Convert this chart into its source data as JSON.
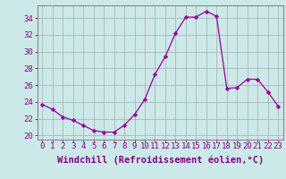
{
  "x": [
    0,
    1,
    2,
    3,
    4,
    5,
    6,
    7,
    8,
    9,
    10,
    11,
    12,
    13,
    14,
    15,
    16,
    17,
    18,
    19,
    20,
    21,
    22,
    23
  ],
  "y": [
    23.7,
    23.1,
    22.2,
    21.8,
    21.2,
    20.6,
    20.4,
    20.4,
    21.2,
    22.5,
    24.3,
    27.3,
    29.4,
    32.2,
    34.1,
    34.1,
    34.8,
    34.2,
    25.6,
    25.7,
    26.7,
    26.7,
    25.2,
    23.5
  ],
  "line_color": "#990099",
  "marker": "D",
  "marker_size": 2.2,
  "bg_color": "#cce9e9",
  "grid_color": "#aaaaaa",
  "xlabel": "Windchill (Refroidissement éolien,°C)",
  "ylim": [
    19.5,
    35.5
  ],
  "xlim": [
    -0.5,
    23.5
  ],
  "yticks": [
    20,
    22,
    24,
    26,
    28,
    30,
    32,
    34
  ],
  "xtick_labels": [
    "0",
    "1",
    "2",
    "3",
    "4",
    "5",
    "6",
    "7",
    "8",
    "9",
    "10",
    "11",
    "12",
    "13",
    "14",
    "15",
    "16",
    "17",
    "18",
    "19",
    "20",
    "21",
    "22",
    "23"
  ],
  "tick_color": "#880088",
  "label_color": "#880088",
  "label_fontsize": 7.5,
  "tick_fontsize": 6.5,
  "spine_color": "#888888"
}
